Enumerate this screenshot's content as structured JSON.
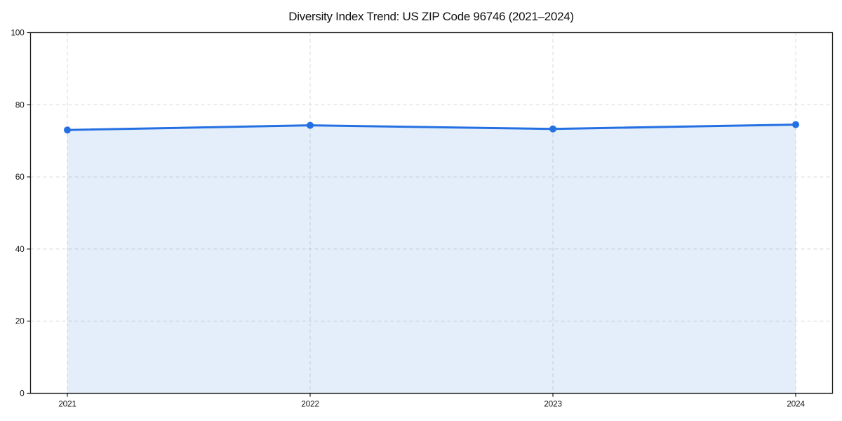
{
  "chart_data": {
    "type": "area",
    "title": "Diversity Index Trend: US ZIP Code 96746 (2021–2024)",
    "categories": [
      "2021",
      "2022",
      "2023",
      "2024"
    ],
    "values": [
      73.0,
      74.3,
      73.3,
      74.5
    ],
    "xlabel": "",
    "ylabel": "",
    "ylim": [
      0,
      100
    ],
    "yticks": [
      0,
      20,
      40,
      60,
      80,
      100
    ],
    "grid": true,
    "legend": "none",
    "colors": {
      "line": "#2470e2",
      "marker": "#2470e2",
      "fill": "#2470e2",
      "fill_opacity": 0.12,
      "gridline": "#d8d8d8",
      "axis": "#1a1a1a",
      "background": "#ffffff"
    }
  }
}
